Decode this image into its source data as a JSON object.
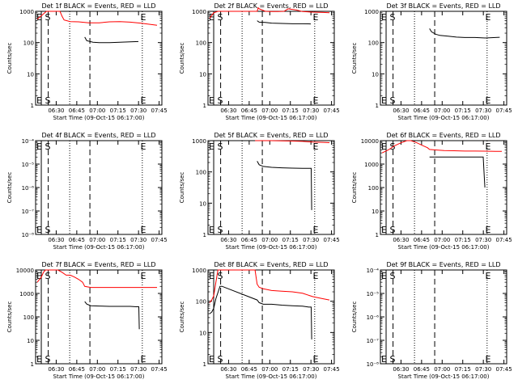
{
  "chart_data": [
    {
      "type": "line",
      "title": "Det 1f BLACK = Events, RED = LLD",
      "xlabel": "Start Time (09-Oct-15 06:17:00)",
      "ylabel": "Counts/sec",
      "yscale": "log",
      "ylim": [
        1,
        1000
      ],
      "ytick_labels": [
        "1",
        "10",
        "100",
        "1000"
      ],
      "xtick_labels": [
        "06:30",
        "06:45",
        "07:00",
        "07:15",
        "07:30",
        "07:45"
      ],
      "markers": {
        "left": "E S",
        "right": "E"
      },
      "series": [
        {
          "color": "#ff0000",
          "points": [
            [
              0,
              560
            ],
            [
              2,
              720
            ],
            [
              3.5,
              880
            ],
            [
              4.5,
              1000
            ],
            [
              10,
              1000
            ],
            [
              11,
              1000
            ],
            [
              12,
              700
            ],
            [
              13,
              530
            ],
            [
              16,
              470
            ],
            [
              20,
              460
            ],
            [
              25,
              430
            ],
            [
              30,
              430
            ],
            [
              35,
              460
            ],
            [
              40,
              470
            ],
            [
              45,
              450
            ],
            [
              50,
              420
            ],
            [
              55,
              380
            ],
            [
              58,
              360
            ]
          ]
        },
        {
          "color": "#000000",
          "points": [
            [
              23,
              150
            ],
            [
              24,
              115
            ],
            [
              27,
              103
            ],
            [
              30,
              100
            ],
            [
              35,
              100
            ],
            [
              40,
              102
            ],
            [
              45,
              105
            ],
            [
              49,
              108
            ]
          ]
        }
      ]
    },
    {
      "type": "line",
      "title": "Det 2f BLACK = Events, RED = LLD",
      "xlabel": "Start Time (09-Oct-15 06:17:00)",
      "ylabel": "Counts/sec",
      "yscale": "log",
      "ylim": [
        1,
        1000
      ],
      "ytick_labels": [
        "1",
        "10",
        "100",
        "1000"
      ],
      "xtick_labels": [
        "06:30",
        "06:45",
        "07:00",
        "07:15",
        "07:30",
        "07:45"
      ],
      "markers": {
        "left": "E S",
        "right": "E"
      },
      "series": [
        {
          "color": "#ff0000",
          "points": [
            [
              0,
              600
            ],
            [
              2,
              900
            ],
            [
              4,
              1000
            ],
            [
              11,
              1000
            ],
            [
              12,
              1000
            ],
            [
              23,
              1000
            ],
            [
              23.5,
              1300
            ],
            [
              24,
              1200
            ],
            [
              27,
              1000
            ],
            [
              30,
              980
            ],
            [
              33,
              990
            ],
            [
              36,
              1000
            ],
            [
              38,
              1200
            ],
            [
              42,
              1100
            ],
            [
              45,
              980
            ],
            [
              50,
              940
            ],
            [
              55,
              920
            ],
            [
              58,
              900
            ]
          ]
        },
        {
          "color": "#000000",
          "points": [
            [
              23,
              500
            ],
            [
              24,
              450
            ],
            [
              27,
              440
            ],
            [
              30,
              420
            ],
            [
              35,
              410
            ],
            [
              40,
              400
            ],
            [
              45,
              400
            ],
            [
              49,
              395
            ]
          ]
        }
      ]
    },
    {
      "type": "line",
      "title": "Det 3f BLACK = Events, RED = LLD",
      "xlabel": "Start Time (09-Oct-15 06:17:00)",
      "ylabel": "Counts/sec",
      "yscale": "log",
      "ylim": [
        1,
        1000
      ],
      "ytick_labels": [
        "1",
        "10",
        "100",
        "1000"
      ],
      "xtick_labels": [
        "06:30",
        "06:45",
        "07:00",
        "07:15",
        "07:30",
        "07:45"
      ],
      "markers": {
        "left": "E S",
        "right": "E"
      },
      "series": [
        {
          "color": "#000000",
          "points": [
            [
              23,
              280
            ],
            [
              24,
              220
            ],
            [
              26,
              185
            ],
            [
              28,
              170
            ],
            [
              32,
              160
            ],
            [
              36,
              150
            ],
            [
              40,
              145
            ],
            [
              45,
              145
            ],
            [
              50,
              140
            ],
            [
              55,
              145
            ],
            [
              57,
              148
            ]
          ]
        }
      ]
    },
    {
      "type": "line",
      "title": "Det 4f BLACK = Events, RED = LLD",
      "xlabel": "Start Time (09-Oct-15 06:17:00)",
      "ylabel": "Counts/sec",
      "yscale": "log",
      "ylim": [
        1e-08,
        0.0001
      ],
      "ytick_labels": [
        "10⁻⁸",
        "10⁻⁷",
        "10⁻⁶",
        "10⁻⁵",
        "10⁻⁴"
      ],
      "xtick_labels": [
        "06:30",
        "06:45",
        "07:00",
        "07:15",
        "07:30",
        "07:45"
      ],
      "markers": {
        "left": "E S",
        "right": "E"
      },
      "series": []
    },
    {
      "type": "line",
      "title": "Det 5f BLACK = Events, RED = LLD",
      "xlabel": "Start Time (09-Oct-15 06:17:00)",
      "ylabel": "Counts/sec",
      "yscale": "log",
      "ylim": [
        1,
        1000
      ],
      "ytick_labels": [
        "1",
        "10",
        "100",
        "1000"
      ],
      "xtick_labels": [
        "06:30",
        "06:45",
        "07:00",
        "07:15",
        "07:30",
        "07:45"
      ],
      "markers": {
        "left": "E S",
        "right": "E"
      },
      "series": [
        {
          "color": "#ff0000",
          "points": [
            [
              22,
              1000
            ],
            [
              30,
              1000
            ],
            [
              40,
              970
            ],
            [
              45,
              950
            ],
            [
              50,
              900
            ],
            [
              55,
              880
            ],
            [
              58,
              860
            ]
          ]
        },
        {
          "color": "#000000",
          "points": [
            [
              23,
              220
            ],
            [
              24,
              170
            ],
            [
              26,
              150
            ],
            [
              30,
              140
            ],
            [
              35,
              135
            ],
            [
              40,
              132
            ],
            [
              45,
              130
            ],
            [
              48,
              130
            ],
            [
              49.2,
              130
            ],
            [
              49.4,
              6
            ]
          ]
        }
      ]
    },
    {
      "type": "line",
      "title": "Det 6f BLACK = Events, RED = LLD",
      "xlabel": "Start Time (09-Oct-15 06:17:00)",
      "ylabel": "Counts/sec",
      "yscale": "log",
      "ylim": [
        1,
        10000
      ],
      "ytick_labels": [
        "1",
        "10",
        "100",
        "1000",
        "10000"
      ],
      "xtick_labels": [
        "06:30",
        "06:45",
        "07:00",
        "07:15",
        "07:30",
        "07:45"
      ],
      "markers": {
        "left": "E S",
        "right": "E"
      },
      "series": [
        {
          "color": "#ff0000",
          "points": [
            [
              0,
              3000
            ],
            [
              3,
              4000
            ],
            [
              6,
              6000
            ],
            [
              9,
              8000
            ],
            [
              12,
              10000
            ],
            [
              14,
              10000
            ],
            [
              17,
              8000
            ],
            [
              20,
              6000
            ],
            [
              22,
              5000
            ],
            [
              23,
              4200
            ],
            [
              26,
              4000
            ],
            [
              30,
              3800
            ],
            [
              35,
              3700
            ],
            [
              40,
              3600
            ],
            [
              45,
              3600
            ],
            [
              50,
              3550
            ],
            [
              55,
              3500
            ],
            [
              58,
              3500
            ]
          ]
        },
        {
          "color": "#000000",
          "points": [
            [
              23,
              2000
            ],
            [
              26,
              2000
            ],
            [
              30,
              2000
            ],
            [
              35,
              2000
            ],
            [
              40,
              2000
            ],
            [
              45,
              2000
            ],
            [
              49,
              2000
            ],
            [
              49.5,
              300
            ],
            [
              49.8,
              100
            ]
          ]
        }
      ]
    },
    {
      "type": "line",
      "title": "Det 7f BLACK = Events, RED = LLD",
      "xlabel": "Start Time (09-Oct-15 06:17:00)",
      "ylabel": "Counts/sec",
      "yscale": "log",
      "ylim": [
        1,
        10000
      ],
      "ytick_labels": [
        "1",
        "10",
        "100",
        "1000",
        "10000"
      ],
      "xtick_labels": [
        "06:30",
        "06:45",
        "07:00",
        "07:15",
        "07:30",
        "07:45"
      ],
      "markers": {
        "left": "E S",
        "right": "E"
      },
      "series": [
        {
          "color": "#ff0000",
          "points": [
            [
              0,
              3000
            ],
            [
              2,
              5000
            ],
            [
              3,
              8000
            ],
            [
              4,
              10000
            ],
            [
              10,
              10000
            ],
            [
              12,
              8000
            ],
            [
              14,
              6000
            ],
            [
              16,
              6000
            ],
            [
              18,
              5000
            ],
            [
              20,
              4000
            ],
            [
              22,
              3000
            ],
            [
              23,
              2000
            ],
            [
              26,
              1800
            ],
            [
              30,
              1800
            ],
            [
              35,
              1800
            ],
            [
              40,
              1800
            ],
            [
              45,
              1800
            ],
            [
              50,
              1800
            ],
            [
              55,
              1800
            ],
            [
              58,
              1800
            ]
          ]
        },
        {
          "color": "#000000",
          "points": [
            [
              23,
              450
            ],
            [
              24,
              350
            ],
            [
              26,
              300
            ],
            [
              30,
              290
            ],
            [
              35,
              280
            ],
            [
              40,
              280
            ],
            [
              45,
              280
            ],
            [
              48,
              270
            ],
            [
              49.2,
              270
            ],
            [
              49.4,
              30
            ]
          ]
        }
      ]
    },
    {
      "type": "line",
      "title": "Det 8f BLACK = Events, RED = LLD",
      "xlabel": "Start Time (09-Oct-15 06:17:00)",
      "ylabel": "Counts/sec",
      "yscale": "log",
      "ylim": [
        1,
        1000
      ],
      "ytick_labels": [
        "1",
        "10",
        "100",
        "1000"
      ],
      "xtick_labels": [
        "06:30",
        "06:45",
        "07:00",
        "07:15",
        "07:30",
        "07:45"
      ],
      "markers": {
        "left": "E S",
        "right": "E"
      },
      "series": [
        {
          "color": "#ff0000",
          "points": [
            [
              0,
              90
            ],
            [
              1,
              110
            ],
            [
              2,
              150
            ],
            [
              3,
              400
            ],
            [
              4,
              1000
            ],
            [
              10,
              1000
            ],
            [
              20,
              1000
            ],
            [
              22,
              1000
            ],
            [
              23,
              350
            ],
            [
              24,
              280
            ],
            [
              26,
              250
            ],
            [
              30,
              220
            ],
            [
              35,
              210
            ],
            [
              40,
              200
            ],
            [
              45,
              180
            ],
            [
              50,
              140
            ],
            [
              55,
              120
            ],
            [
              58,
              110
            ]
          ]
        },
        {
          "color": "#000000",
          "points": [
            [
              0,
              40
            ],
            [
              1,
              45
            ],
            [
              2,
              60
            ],
            [
              3,
              120
            ],
            [
              5,
              300
            ],
            [
              6,
              300
            ],
            [
              23,
              110
            ],
            [
              24,
              90
            ],
            [
              26,
              80
            ],
            [
              30,
              80
            ],
            [
              35,
              75
            ],
            [
              40,
              72
            ],
            [
              45,
              70
            ],
            [
              48,
              65
            ],
            [
              49.2,
              65
            ],
            [
              49.4,
              6
            ]
          ]
        }
      ]
    },
    {
      "type": "line",
      "title": "Det 9f BLACK = Events, RED = LLD",
      "xlabel": "Start Time (09-Oct-15 06:17:00)",
      "ylabel": "Counts/sec",
      "yscale": "log",
      "ylim": [
        1e-08,
        0.0001
      ],
      "ytick_labels": [
        "10⁻⁸",
        "10⁻⁷",
        "10⁻⁶",
        "10⁻⁵",
        "10⁻⁴"
      ],
      "xtick_labels": [
        "06:30",
        "06:45",
        "07:00",
        "07:15",
        "07:30",
        "07:45"
      ],
      "markers": {
        "left": "E S",
        "right": "E"
      },
      "series": []
    }
  ]
}
